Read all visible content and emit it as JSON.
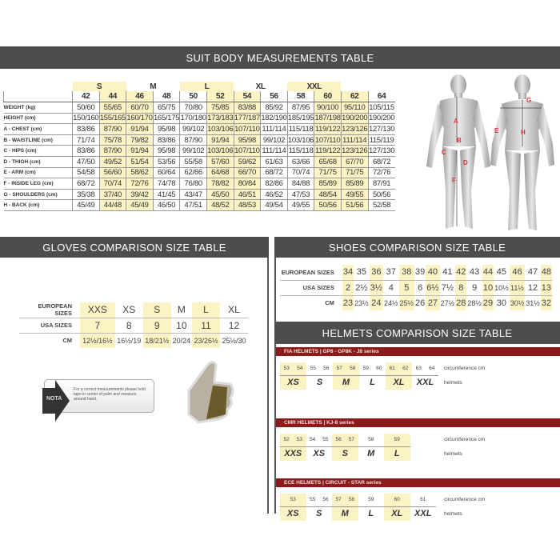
{
  "suit": {
    "title": "SUIT BODY MEASUREMENTS TABLE",
    "groups": [
      {
        "label": "",
        "span": 1,
        "hl": false
      },
      {
        "label": "S",
        "span": 2,
        "hl": true
      },
      {
        "label": "M",
        "span": 2,
        "hl": false
      },
      {
        "label": "L",
        "span": 2,
        "hl": true
      },
      {
        "label": "XL",
        "span": 2,
        "hl": false
      },
      {
        "label": "XXL",
        "span": 2,
        "hl": true
      },
      {
        "label": "",
        "span": 1,
        "hl": false
      }
    ],
    "sizes": [
      "42",
      "44",
      "46",
      "48",
      "50",
      "52",
      "54",
      "56",
      "58",
      "60",
      "62",
      "64"
    ],
    "highlight_sizes": [
      "44",
      "46",
      "52",
      "54",
      "60",
      "62"
    ],
    "rows": [
      {
        "label": "WEIGHT (kg)",
        "values": [
          "50/60",
          "55/65",
          "60/70",
          "65/75",
          "70/80",
          "75/85",
          "83/88",
          "85/92",
          "87/95",
          "90/100",
          "95/110",
          "105/115"
        ]
      },
      {
        "label": "HEIGHT (cm)",
        "values": [
          "150/160",
          "155/165",
          "160/170",
          "165/175",
          "170/180",
          "173/183",
          "177/187",
          "182/190",
          "185/195",
          "187/198",
          "190/200",
          "190/200"
        ]
      },
      {
        "label": "A - CHEST (cm)",
        "values": [
          "83/86",
          "87/90",
          "91/94",
          "95/98",
          "99/102",
          "103/106",
          "107/110",
          "111/114",
          "115/118",
          "119/122",
          "123/126",
          "127/130"
        ]
      },
      {
        "label": "B - WAISTLINE (cm)",
        "values": [
          "71/74",
          "75/78",
          "79/82",
          "83/86",
          "87/90",
          "91/94",
          "95/98",
          "99/102",
          "103/106",
          "107/110",
          "111/114",
          "115/119"
        ]
      },
      {
        "label": "C - HIPS (cm)",
        "values": [
          "83/86",
          "87/90",
          "91/94",
          "95/98",
          "99/102",
          "103/106",
          "107/110",
          "111/114",
          "115/118",
          "119/122",
          "123/126",
          "127/130"
        ]
      },
      {
        "label": "D - THIGH (cm)",
        "values": [
          "47/50",
          "49/52",
          "51/54",
          "53/56",
          "55/58",
          "57/60",
          "59/62",
          "61/63",
          "63/66",
          "65/68",
          "67/70",
          "68/72"
        ]
      },
      {
        "label": "E - ARM (cm)",
        "values": [
          "54/58",
          "56/60",
          "58/62",
          "60/64",
          "62/66",
          "64/68",
          "66/70",
          "68/72",
          "70/74",
          "71/75",
          "71/75",
          "72/76"
        ]
      },
      {
        "label": "F - INSIDE LEG (cm)",
        "values": [
          "68/72",
          "70/74",
          "72/76",
          "74/78",
          "76/80",
          "78/82",
          "80/84",
          "82/86",
          "84/88",
          "85/89",
          "85/89",
          "87/91"
        ]
      },
      {
        "label": "G - SHOULDERS (cm)",
        "values": [
          "35/38",
          "37/40",
          "39/42",
          "41/45",
          "43/47",
          "45/50",
          "46/51",
          "46/52",
          "47/53",
          "48/54",
          "49/55",
          "50/56"
        ]
      },
      {
        "label": "H - BACK (cm)",
        "values": [
          "45/49",
          "44/48",
          "45/49",
          "46/50",
          "47/51",
          "48/52",
          "48/53",
          "49/54",
          "49/55",
          "50/56",
          "51/56",
          "52/58"
        ]
      }
    ],
    "figure_markers": [
      "A",
      "B",
      "C",
      "D",
      "E",
      "F",
      "G",
      "H"
    ]
  },
  "gloves": {
    "title": "GLOVES COMPARISON SIZE TABLE",
    "rows": [
      {
        "label": "EUROPEAN SIZES",
        "values": [
          "XXS",
          "XS",
          "S",
          "M",
          "L",
          "XL"
        ]
      },
      {
        "label": "USA SIZES",
        "values": [
          "7",
          "8",
          "9",
          "10",
          "11",
          "12"
        ]
      },
      {
        "label": "CM",
        "values": [
          "12½/16½",
          "16½/19",
          "18/21½",
          "20/24",
          "23/26½",
          "25½/30"
        ]
      }
    ],
    "highlight_cols": [
      0,
      2,
      4
    ],
    "nota_label": "NOTA",
    "nota_text": "For a correct measurements please hold tape in center of palm and measure around hand."
  },
  "shoes": {
    "title": "SHOES COMPARISON SIZE TABLE",
    "rows": [
      {
        "label": "EUROPEAN SIZES",
        "values": [
          "34",
          "35",
          "36",
          "37",
          "38",
          "39",
          "40",
          "41",
          "42",
          "43",
          "44",
          "45",
          "46",
          "47",
          "48"
        ]
      },
      {
        "label": "USA SIZES",
        "values": [
          "2",
          "2½",
          "3½",
          "4",
          "5",
          "6",
          "6½",
          "7½",
          "8",
          "9",
          "10",
          "10½",
          "11½",
          "12",
          "13"
        ]
      },
      {
        "label": "CM",
        "values": [
          "23",
          "23½",
          "24",
          "24½",
          "25½",
          "26",
          "27",
          "27½",
          "28",
          "28½",
          "29",
          "30",
          "30½",
          "31½",
          "32"
        ]
      }
    ]
  },
  "helmets": {
    "title": "HELMETS COMPARISON SIZE TABLE",
    "circ_label": "circumference cm",
    "helmets_label": "helmets",
    "sections": [
      {
        "title": "FIA HELMETS | GP8 - GP8K - J8 series",
        "groups": [
          {
            "nums": [
              "53",
              "54"
            ],
            "size": "XS",
            "hl": true
          },
          {
            "nums": [
              "55",
              "56"
            ],
            "size": "S",
            "hl": false
          },
          {
            "nums": [
              "57",
              "58"
            ],
            "size": "M",
            "hl": true
          },
          {
            "nums": [
              "59",
              "60"
            ],
            "size": "L",
            "hl": false
          },
          {
            "nums": [
              "61",
              "62"
            ],
            "size": "XL",
            "hl": true
          },
          {
            "nums": [
              "63",
              "64"
            ],
            "size": "XXL",
            "hl": false
          }
        ]
      },
      {
        "title": "CMR HELMETS | KJ-8 series",
        "groups": [
          {
            "nums": [
              "52",
              "53"
            ],
            "size": "XXS",
            "hl": true
          },
          {
            "nums": [
              "54",
              "55"
            ],
            "size": "XS",
            "hl": false
          },
          {
            "nums": [
              "56",
              "57"
            ],
            "size": "S",
            "hl": true
          },
          {
            "nums": [
              "58"
            ],
            "size": "M",
            "hl": false
          },
          {
            "nums": [
              "59"
            ],
            "size": "L",
            "hl": true
          }
        ]
      },
      {
        "title": "ECE HELMETS | CIRCUIT - STAR series",
        "groups": [
          {
            "nums": [
              "53"
            ],
            "size": "XS",
            "hl": true
          },
          {
            "nums": [
              "55",
              "56"
            ],
            "size": "S",
            "hl": false
          },
          {
            "nums": [
              "57",
              "58"
            ],
            "size": "M",
            "hl": true
          },
          {
            "nums": [
              "59"
            ],
            "size": "L",
            "hl": false
          },
          {
            "nums": [
              "60"
            ],
            "size": "XL",
            "hl": true
          },
          {
            "nums": [
              "61"
            ],
            "size": "XXL",
            "hl": false
          }
        ]
      }
    ]
  },
  "colors": {
    "header": "#4d4d4d",
    "highlight": "#fbf3c4",
    "helmet_bar": "#8b1a1a",
    "marker": "#e0303a"
  }
}
